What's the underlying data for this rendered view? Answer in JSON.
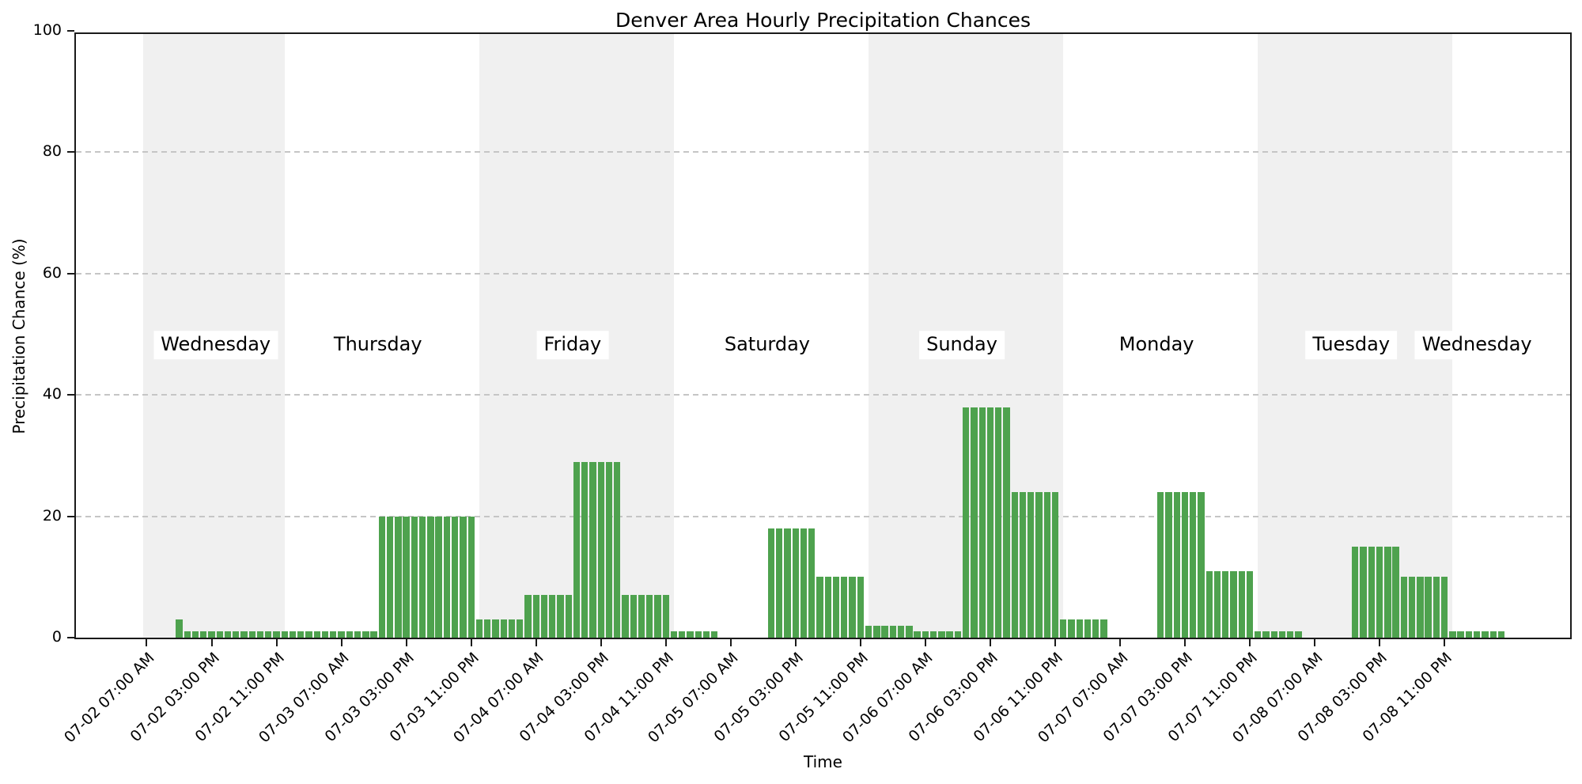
{
  "colors": {
    "bar": "#4ea24e",
    "band": "#f0f0f0",
    "grid": "#c5c5c5",
    "spine": "#1a1a1a",
    "day_label_box": "#ffffff",
    "text": "#000000"
  },
  "chart_data": {
    "type": "bar",
    "title": "Denver Area Hourly Precipitation Chances",
    "xlabel": "Time",
    "ylabel": "Precipitation Chance (%)",
    "ylim": [
      0,
      100
    ],
    "yticks": [
      0,
      20,
      40,
      60,
      80,
      100
    ],
    "grid": "horizontal dashed lines at 20, 40, 60, 80",
    "legend": "none",
    "x_axis_note": "hourly bars; hour 0 = 07-02 12:00 AM; data from 07-02 07:00 AM to 07-09 06:00 AM",
    "first_bar_hour": 7,
    "step_hours": 1,
    "values": [
      0,
      0,
      0,
      0,
      3,
      1,
      1,
      1,
      1,
      1,
      1,
      1,
      1,
      1,
      1,
      1,
      1,
      1,
      1,
      1,
      1,
      1,
      1,
      1,
      1,
      1,
      1,
      1,
      1,
      20,
      20,
      20,
      20,
      20,
      20,
      20,
      20,
      20,
      20,
      20,
      20,
      3,
      3,
      3,
      3,
      3,
      3,
      7,
      7,
      7,
      7,
      7,
      7,
      29,
      29,
      29,
      29,
      29,
      29,
      7,
      7,
      7,
      7,
      7,
      7,
      1,
      1,
      1,
      1,
      1,
      1,
      0,
      0,
      0,
      0,
      0,
      0,
      18,
      18,
      18,
      18,
      18,
      18,
      10,
      10,
      10,
      10,
      10,
      10,
      2,
      2,
      2,
      2,
      2,
      2,
      1,
      1,
      1,
      1,
      1,
      1,
      38,
      38,
      38,
      38,
      38,
      38,
      24,
      24,
      24,
      24,
      24,
      24,
      3,
      3,
      3,
      3,
      3,
      3,
      0,
      0,
      0,
      0,
      0,
      0,
      24,
      24,
      24,
      24,
      24,
      24,
      11,
      11,
      11,
      11,
      11,
      11,
      1,
      1,
      1,
      1,
      1,
      1,
      0,
      0,
      0,
      0,
      0,
      0,
      15,
      15,
      15,
      15,
      15,
      15,
      10,
      10,
      10,
      10,
      10,
      10,
      1,
      1,
      1,
      1,
      1,
      1,
      1
    ],
    "xticks": [
      {
        "hour": 7,
        "label": "07-02 07:00 AM"
      },
      {
        "hour": 15,
        "label": "07-02 03:00 PM"
      },
      {
        "hour": 23,
        "label": "07-02 11:00 PM"
      },
      {
        "hour": 31,
        "label": "07-03 07:00 AM"
      },
      {
        "hour": 39,
        "label": "07-03 03:00 PM"
      },
      {
        "hour": 47,
        "label": "07-03 11:00 PM"
      },
      {
        "hour": 55,
        "label": "07-04 07:00 AM"
      },
      {
        "hour": 63,
        "label": "07-04 03:00 PM"
      },
      {
        "hour": 71,
        "label": "07-04 11:00 PM"
      },
      {
        "hour": 79,
        "label": "07-05 07:00 AM"
      },
      {
        "hour": 87,
        "label": "07-05 03:00 PM"
      },
      {
        "hour": 95,
        "label": "07-05 11:00 PM"
      },
      {
        "hour": 103,
        "label": "07-06 07:00 AM"
      },
      {
        "hour": 111,
        "label": "07-06 03:00 PM"
      },
      {
        "hour": 119,
        "label": "07-06 11:00 PM"
      },
      {
        "hour": 127,
        "label": "07-07 07:00 AM"
      },
      {
        "hour": 135,
        "label": "07-07 03:00 PM"
      },
      {
        "hour": 143,
        "label": "07-07 11:00 PM"
      },
      {
        "hour": 151,
        "label": "07-08 07:00 AM"
      },
      {
        "hour": 159,
        "label": "07-08 03:00 PM"
      },
      {
        "hour": 167,
        "label": "07-08 11:00 PM"
      }
    ],
    "day_bands": [
      {
        "day": "Wednesday",
        "start_hour": 6.6,
        "end_hour": 24,
        "shaded": true
      },
      {
        "day": "Thursday",
        "start_hour": 24,
        "end_hour": 48,
        "shaded": false
      },
      {
        "day": "Friday",
        "start_hour": 48,
        "end_hour": 72,
        "shaded": true
      },
      {
        "day": "Saturday",
        "start_hour": 72,
        "end_hour": 96,
        "shaded": false
      },
      {
        "day": "Sunday",
        "start_hour": 96,
        "end_hour": 120,
        "shaded": true
      },
      {
        "day": "Monday",
        "start_hour": 120,
        "end_hour": 144,
        "shaded": false
      },
      {
        "day": "Tuesday",
        "start_hour": 144,
        "end_hour": 168,
        "shaded": true
      },
      {
        "day": "Wednesday",
        "start_hour": 168,
        "end_hour": 174.5,
        "shaded": false
      }
    ],
    "day_labels": [
      {
        "text": "Wednesday",
        "hour": 15.5
      },
      {
        "text": "Thursday",
        "hour": 35.5
      },
      {
        "text": "Friday",
        "hour": 59.5
      },
      {
        "text": "Saturday",
        "hour": 83.5
      },
      {
        "text": "Sunday",
        "hour": 107.5
      },
      {
        "text": "Monday",
        "hour": 131.5
      },
      {
        "text": "Tuesday",
        "hour": 155.5
      },
      {
        "text": "Wednesday",
        "hour": 171
      }
    ]
  }
}
